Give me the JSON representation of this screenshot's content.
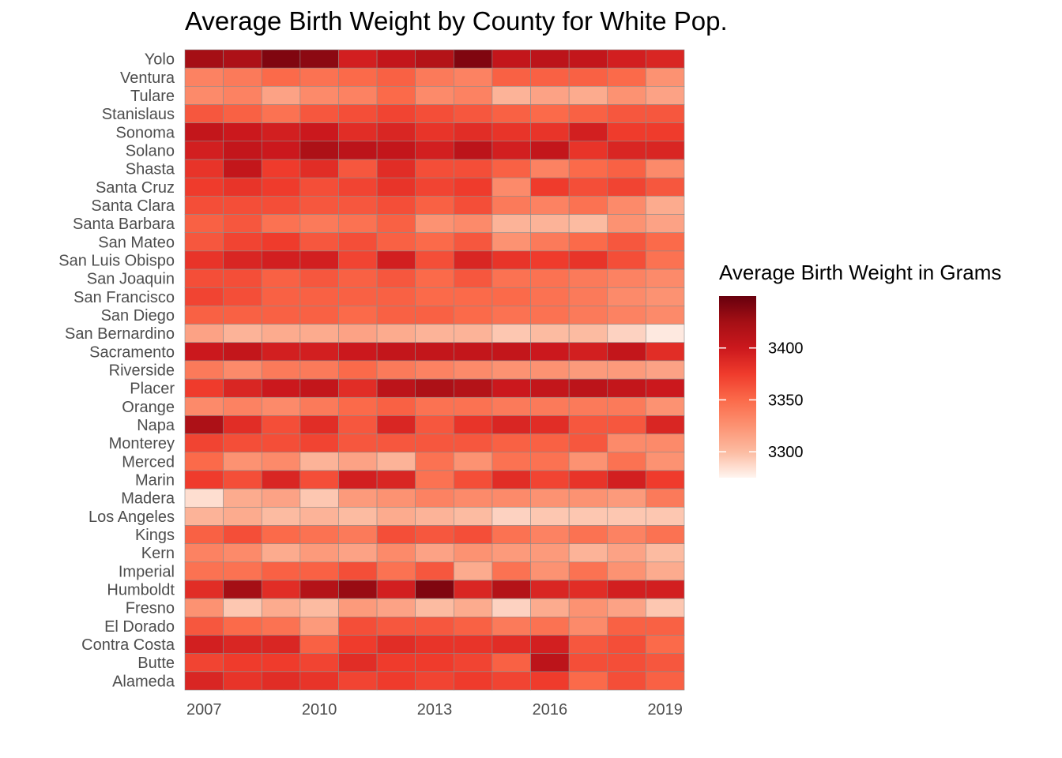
{
  "chart_data": {
    "type": "heatmap",
    "title": "Average Birth Weight by County for White Pop.",
    "xlabel": "",
    "ylabel": "",
    "x": [
      2007,
      2008,
      2009,
      2010,
      2011,
      2012,
      2013,
      2014,
      2015,
      2016,
      2017,
      2018,
      2019
    ],
    "x_tick_labels": [
      "2007",
      "2010",
      "2013",
      "2016",
      "2019"
    ],
    "y": [
      "Yolo",
      "Ventura",
      "Tulare",
      "Stanislaus",
      "Sonoma",
      "Solano",
      "Shasta",
      "Santa Cruz",
      "Santa Clara",
      "Santa Barbara",
      "San Mateo",
      "San Luis Obispo",
      "San Joaquin",
      "San Francisco",
      "San Diego",
      "San Bernardino",
      "Sacramento",
      "Riverside",
      "Placer",
      "Orange",
      "Napa",
      "Monterey",
      "Merced",
      "Marin",
      "Madera",
      "Los Angeles",
      "Kings",
      "Kern",
      "Imperial",
      "Humboldt",
      "Fresno",
      "El Dorado",
      "Contra Costa",
      "Butte",
      "Alameda"
    ],
    "values": [
      [
        3425,
        3420,
        3440,
        3435,
        3395,
        3405,
        3415,
        3440,
        3405,
        3410,
        3405,
        3395,
        3390
      ],
      [
        3335,
        3340,
        3350,
        3345,
        3350,
        3355,
        3340,
        3335,
        3355,
        3355,
        3355,
        3350,
        3325
      ],
      [
        3330,
        3335,
        3315,
        3330,
        3335,
        3350,
        3330,
        3335,
        3305,
        3315,
        3310,
        3325,
        3315
      ],
      [
        3360,
        3355,
        3345,
        3360,
        3365,
        3370,
        3365,
        3360,
        3355,
        3350,
        3355,
        3360,
        3360
      ],
      [
        3405,
        3400,
        3395,
        3400,
        3385,
        3390,
        3380,
        3385,
        3380,
        3380,
        3395,
        3375,
        3375
      ],
      [
        3395,
        3405,
        3400,
        3420,
        3410,
        3405,
        3395,
        3410,
        3395,
        3405,
        3380,
        3390,
        3390
      ],
      [
        3380,
        3405,
        3375,
        3385,
        3360,
        3385,
        3365,
        3365,
        3355,
        3335,
        3350,
        3355,
        3330
      ],
      [
        3375,
        3380,
        3375,
        3365,
        3370,
        3380,
        3370,
        3375,
        3330,
        3375,
        3365,
        3370,
        3360
      ],
      [
        3365,
        3365,
        3365,
        3360,
        3360,
        3365,
        3355,
        3365,
        3340,
        3335,
        3345,
        3330,
        3310
      ],
      [
        3355,
        3360,
        3345,
        3340,
        3345,
        3355,
        3325,
        3330,
        3305,
        3305,
        3300,
        3325,
        3315
      ],
      [
        3360,
        3370,
        3375,
        3360,
        3365,
        3355,
        3350,
        3360,
        3325,
        3340,
        3350,
        3360,
        3350
      ],
      [
        3380,
        3390,
        3395,
        3395,
        3370,
        3395,
        3365,
        3390,
        3380,
        3375,
        3380,
        3365,
        3345
      ],
      [
        3365,
        3365,
        3355,
        3360,
        3355,
        3360,
        3350,
        3360,
        3345,
        3345,
        3340,
        3335,
        3330
      ],
      [
        3370,
        3365,
        3355,
        3355,
        3355,
        3355,
        3350,
        3350,
        3350,
        3345,
        3340,
        3330,
        3325
      ],
      [
        3355,
        3355,
        3355,
        3355,
        3350,
        3355,
        3355,
        3350,
        3345,
        3345,
        3340,
        3335,
        3330
      ],
      [
        3315,
        3305,
        3310,
        3310,
        3315,
        3310,
        3305,
        3305,
        3295,
        3300,
        3300,
        3290,
        3280
      ],
      [
        3400,
        3405,
        3395,
        3395,
        3400,
        3405,
        3405,
        3405,
        3405,
        3400,
        3395,
        3405,
        3385
      ],
      [
        3340,
        3330,
        3340,
        3340,
        3350,
        3340,
        3335,
        3330,
        3325,
        3325,
        3320,
        3320,
        3315
      ],
      [
        3375,
        3390,
        3400,
        3405,
        3385,
        3410,
        3420,
        3415,
        3400,
        3405,
        3410,
        3405,
        3400
      ],
      [
        3330,
        3335,
        3330,
        3340,
        3350,
        3355,
        3345,
        3345,
        3340,
        3340,
        3340,
        3340,
        3325
      ],
      [
        3420,
        3385,
        3365,
        3385,
        3360,
        3390,
        3360,
        3380,
        3390,
        3385,
        3360,
        3360,
        3390
      ],
      [
        3370,
        3365,
        3365,
        3370,
        3360,
        3360,
        3360,
        3360,
        3355,
        3355,
        3360,
        3330,
        3330
      ],
      [
        3350,
        3325,
        3330,
        3305,
        3315,
        3305,
        3345,
        3325,
        3345,
        3345,
        3325,
        3345,
        3325
      ],
      [
        3375,
        3365,
        3390,
        3365,
        3395,
        3390,
        3345,
        3365,
        3385,
        3370,
        3380,
        3395,
        3375
      ],
      [
        3285,
        3310,
        3315,
        3295,
        3320,
        3325,
        3335,
        3330,
        3330,
        3325,
        3325,
        3320,
        3340
      ],
      [
        3305,
        3310,
        3300,
        3305,
        3300,
        3310,
        3305,
        3300,
        3290,
        3295,
        3295,
        3295,
        3295
      ],
      [
        3355,
        3365,
        3350,
        3345,
        3340,
        3365,
        3360,
        3365,
        3345,
        3335,
        3345,
        3335,
        3345
      ],
      [
        3335,
        3330,
        3310,
        3320,
        3315,
        3330,
        3315,
        3325,
        3320,
        3320,
        3305,
        3315,
        3300
      ],
      [
        3345,
        3345,
        3355,
        3355,
        3365,
        3345,
        3360,
        3310,
        3345,
        3325,
        3345,
        3325,
        3310
      ],
      [
        3385,
        3425,
        3385,
        3415,
        3430,
        3395,
        3440,
        3390,
        3415,
        3390,
        3385,
        3395,
        3395
      ],
      [
        3325,
        3295,
        3310,
        3300,
        3320,
        3315,
        3300,
        3310,
        3290,
        3310,
        3325,
        3315,
        3295
      ],
      [
        3360,
        3350,
        3345,
        3320,
        3365,
        3360,
        3360,
        3355,
        3340,
        3345,
        3330,
        3355,
        3355
      ],
      [
        3395,
        3390,
        3390,
        3355,
        3375,
        3385,
        3380,
        3380,
        3385,
        3395,
        3360,
        3365,
        3350
      ],
      [
        3370,
        3375,
        3375,
        3370,
        3385,
        3375,
        3375,
        3370,
        3355,
        3410,
        3365,
        3365,
        3360
      ],
      [
        3390,
        3380,
        3385,
        3380,
        3370,
        3375,
        3370,
        3375,
        3370,
        3375,
        3350,
        3365,
        3355
      ]
    ],
    "colorbar": {
      "title": "Average Birth Weight in Grams",
      "range": [
        3275,
        3450
      ],
      "ticks": [
        3300,
        3350,
        3400
      ],
      "colors": [
        "#fff5f0",
        "#fcbba1",
        "#fc9272",
        "#fb6a4a",
        "#ef3b2c",
        "#cb181d",
        "#a50f15",
        "#67000d"
      ]
    },
    "legend_position": "right",
    "grid": false
  }
}
